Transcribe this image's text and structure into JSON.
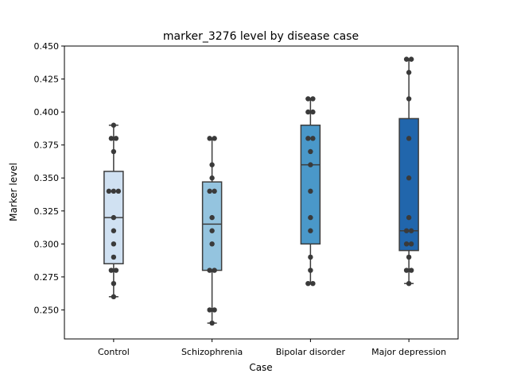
{
  "chart_data": {
    "type": "box",
    "title": "marker_3276 level by disease case",
    "xlabel": "Case",
    "ylabel": "Marker level",
    "ylim": [
      0.228,
      0.45
    ],
    "yticks": [
      "0.250",
      "0.275",
      "0.300",
      "0.325",
      "0.350",
      "0.375",
      "0.400",
      "0.425",
      "0.450"
    ],
    "ytick_values": [
      0.25,
      0.275,
      0.3,
      0.325,
      0.35,
      0.375,
      0.4,
      0.425,
      0.45
    ],
    "categories": [
      "Control",
      "Schizophrenia",
      "Bipolar disorder",
      "Major depression"
    ],
    "colors": [
      "#d0e1f2",
      "#94c4df",
      "#4a98c9",
      "#2166ac"
    ],
    "boxes": [
      {
        "min": 0.26,
        "q1": 0.285,
        "median": 0.32,
        "q3": 0.355,
        "max": 0.39
      },
      {
        "min": 0.24,
        "q1": 0.28,
        "median": 0.315,
        "q3": 0.347,
        "max": 0.38
      },
      {
        "min": 0.27,
        "q1": 0.3,
        "median": 0.36,
        "q3": 0.39,
        "max": 0.41
      },
      {
        "min": 0.27,
        "q1": 0.295,
        "median": 0.31,
        "q3": 0.395,
        "max": 0.44
      }
    ],
    "points": [
      [
        0.39,
        0.38,
        0.38,
        0.37,
        0.34,
        0.34,
        0.34,
        0.32,
        0.31,
        0.3,
        0.29,
        0.28,
        0.28,
        0.27,
        0.26
      ],
      [
        0.38,
        0.38,
        0.36,
        0.35,
        0.34,
        0.34,
        0.32,
        0.31,
        0.3,
        0.28,
        0.28,
        0.25,
        0.25,
        0.24
      ],
      [
        0.41,
        0.41,
        0.4,
        0.4,
        0.38,
        0.38,
        0.37,
        0.36,
        0.34,
        0.32,
        0.31,
        0.29,
        0.28,
        0.27,
        0.27
      ],
      [
        0.44,
        0.44,
        0.43,
        0.41,
        0.38,
        0.35,
        0.32,
        0.31,
        0.31,
        0.3,
        0.3,
        0.29,
        0.28,
        0.28,
        0.27
      ]
    ],
    "grid": false,
    "legend": "none"
  }
}
